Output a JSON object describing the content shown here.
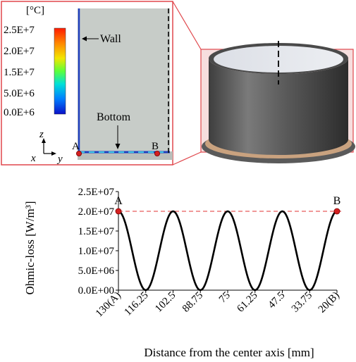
{
  "inset": {
    "legend_unit": "[°C]",
    "legend_ticks": [
      "2.5E+7",
      "2.0E+7",
      "1.5E+7",
      "5.0E+6",
      "0.0E+6"
    ],
    "label_wall": "Wall",
    "label_bottom": "Bottom",
    "point_a": "A",
    "point_b": "B",
    "axis_z": "z",
    "axis_x": "x",
    "axis_y": "y",
    "colors": {
      "frame": "#e0474c",
      "wall": "#1f3fbf",
      "point": "#d42020"
    }
  },
  "chart_data": {
    "type": "line",
    "xlabel": "Distance from the center axis [mm]",
    "ylabel": "Ohmic-loss [W/m³]",
    "categories": [
      "130(A)",
      "116.25",
      "102.5",
      "88.75",
      "75",
      "61.25",
      "47.5",
      "33.75",
      "20(B)"
    ],
    "x_range": [
      130,
      20
    ],
    "ylim": [
      0,
      25000000
    ],
    "y_ticks": [
      "0.0E+00",
      "5.0E+06",
      "1.0E+07",
      "1.5E+07",
      "2.0E+07",
      "2.5E+07"
    ],
    "series": [
      {
        "x": [
          130,
          116.25,
          102.5,
          88.75,
          75,
          61.25,
          47.5,
          33.75,
          20
        ],
        "values": [
          20000000,
          0,
          20000000,
          0,
          20000000,
          0,
          20000000,
          0,
          20000000
        ],
        "color": "#000000"
      }
    ],
    "reference_line": {
      "value": 20000000,
      "color": "#e03030",
      "style": "dashed"
    },
    "annotations": [
      {
        "text": "A",
        "x": 130,
        "y": 20000000
      },
      {
        "text": "B",
        "x": 20,
        "y": 20000000
      }
    ],
    "grid": false
  }
}
